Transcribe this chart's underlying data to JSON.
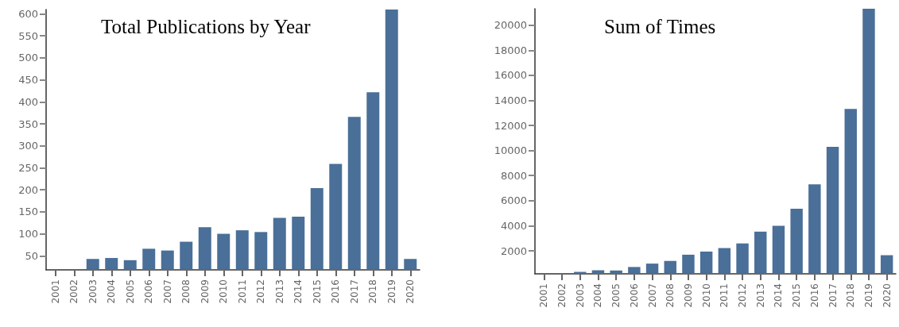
{
  "chart_data": [
    {
      "type": "bar",
      "title": "Total Publications by Year",
      "categories": [
        "2001",
        "2002",
        "2003",
        "2004",
        "2005",
        "2006",
        "2007",
        "2008",
        "2009",
        "2010",
        "2011",
        "2012",
        "2013",
        "2014",
        "2015",
        "2016",
        "2017",
        "2018",
        "2019",
        "2020"
      ],
      "values": [
        18,
        19,
        43,
        45,
        40,
        66,
        62,
        82,
        115,
        100,
        108,
        104,
        136,
        139,
        204,
        259,
        366,
        422,
        610,
        43
      ],
      "color": "#4a6f98",
      "ylim": [
        18,
        610
      ],
      "yticks": [
        50,
        100,
        150,
        200,
        250,
        300,
        350,
        400,
        450,
        500,
        550,
        600
      ],
      "grid": false
    },
    {
      "type": "bar",
      "title": "Sum of Times",
      "categories": [
        "2001",
        "2002",
        "2003",
        "2004",
        "2005",
        "2006",
        "2007",
        "2008",
        "2009",
        "2010",
        "2011",
        "2012",
        "2013",
        "2014",
        "2015",
        "2016",
        "2017",
        "2018",
        "2019",
        "2020"
      ],
      "values": [
        165,
        170,
        320,
        450,
        430,
        710,
        980,
        1190,
        1690,
        1940,
        2220,
        2590,
        3530,
        3990,
        5360,
        7310,
        10300,
        13310,
        21310,
        1650
      ],
      "color": "#4a6f98",
      "ylim": [
        165,
        21310
      ],
      "yticks": [
        2000,
        4000,
        6000,
        8000,
        10000,
        12000,
        14000,
        16000,
        18000,
        20000
      ],
      "grid": false
    }
  ]
}
